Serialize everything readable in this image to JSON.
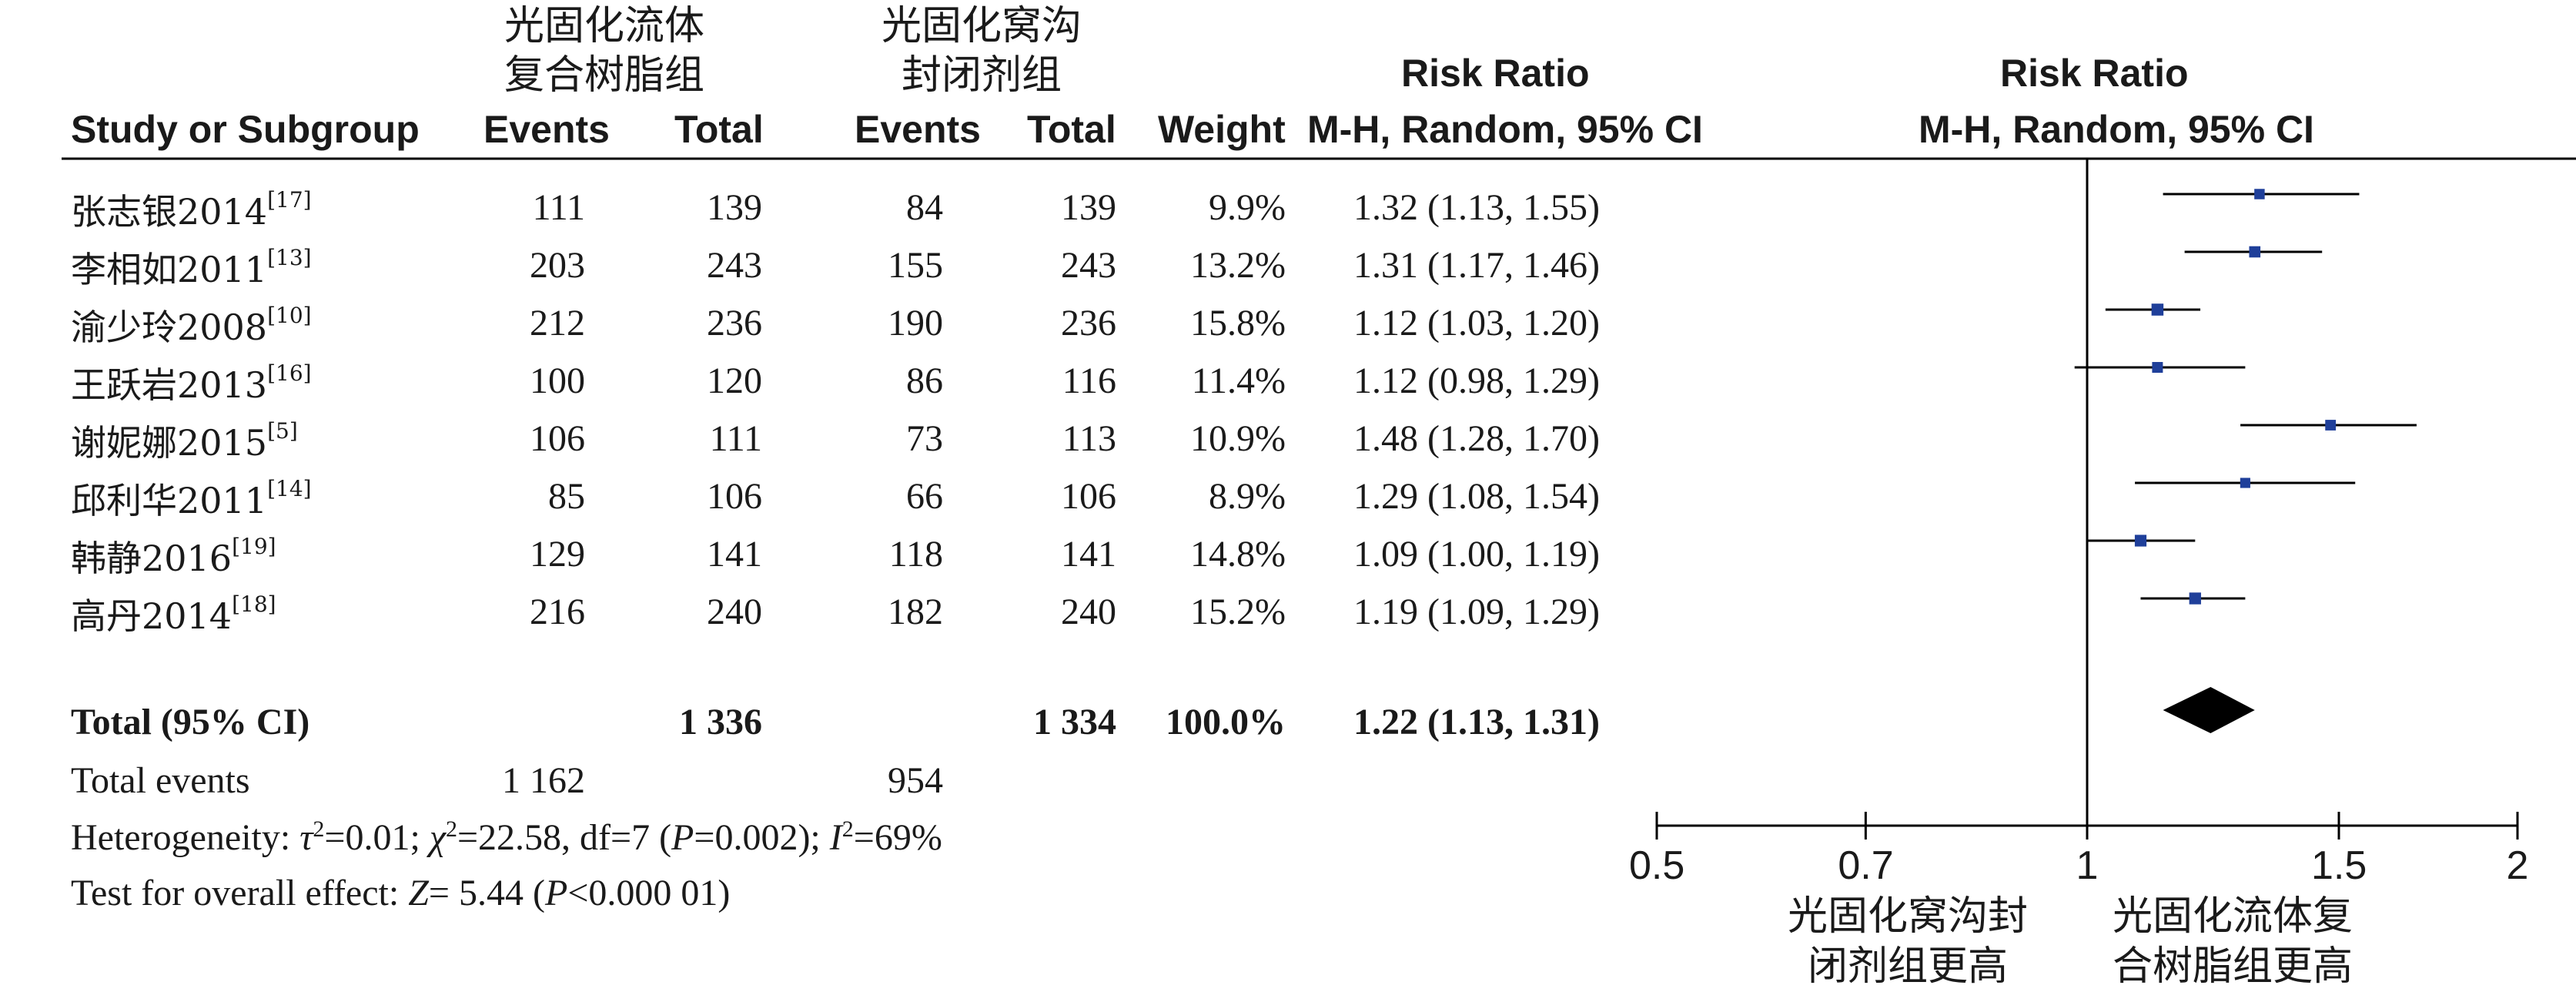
{
  "headers": {
    "study": "Study or Subgroup",
    "group1_line1": "光固化流体",
    "group1_line2": "复合树脂组",
    "group2_line1": "光固化窝沟",
    "group2_line2": "封闭剂组",
    "events1": "Events",
    "total1": "Total",
    "events2": "Events",
    "total2": "Total",
    "weight": "Weight",
    "rr_line1": "Risk Ratio",
    "rr_line2": "M-H, Random, 95% CI",
    "plot_line1": "Risk Ratio",
    "plot_line2": "M-H, Random, 95% CI"
  },
  "studies": [
    {
      "name": "张志银2014",
      "ref": "[17]",
      "events1": "111",
      "total1": "139",
      "events2": "84",
      "total2": "139",
      "weight": "9.9%",
      "ci": "1.32 (1.13, 1.55)"
    },
    {
      "name": "李相如2011",
      "ref": "[13]",
      "events1": "203",
      "total1": "243",
      "events2": "155",
      "total2": "243",
      "weight": "13.2%",
      "ci": "1.31 (1.17, 1.46)"
    },
    {
      "name": "渝少玲2008",
      "ref": "[10]",
      "events1": "212",
      "total1": "236",
      "events2": "190",
      "total2": "236",
      "weight": "15.8%",
      "ci": "1.12 (1.03, 1.20)"
    },
    {
      "name": "王跃岩2013",
      "ref": "[16]",
      "events1": "100",
      "total1": "120",
      "events2": "86",
      "total2": "116",
      "weight": "11.4%",
      "ci": "1.12 (0.98, 1.29)"
    },
    {
      "name": "谢妮娜2015",
      "ref": "[5]",
      "events1": "106",
      "total1": "111",
      "events2": "73",
      "total2": "113",
      "weight": "10.9%",
      "ci": "1.48 (1.28, 1.70)"
    },
    {
      "name": "邱利华2011",
      "ref": "[14]",
      "events1": "85",
      "total1": "106",
      "events2": "66",
      "total2": "106",
      "weight": "8.9%",
      "ci": "1.29 (1.08, 1.54)"
    },
    {
      "name": "韩静2016",
      "ref": "[19]",
      "events1": "129",
      "total1": "141",
      "events2": "118",
      "total2": "141",
      "weight": "14.8%",
      "ci": "1.09 (1.00, 1.19)"
    },
    {
      "name": "高丹2014",
      "ref": "[18]",
      "events1": "216",
      "total1": "240",
      "events2": "182",
      "total2": "240",
      "weight": "15.2%",
      "ci": "1.19 (1.09, 1.29)"
    }
  ],
  "total_row": {
    "label": "Total (95% CI)",
    "total1": "1 336",
    "total2": "1 334",
    "weight": "100.0%",
    "ci": "1.22 (1.13, 1.31)"
  },
  "total_events": {
    "label": "Total events",
    "events1": "1 162",
    "events2": "954"
  },
  "heterogeneity": {
    "prefix": "Heterogeneity: ",
    "tau": "τ",
    "tau_val": "=0.01; ",
    "chi": "χ",
    "chi_val": "=22.58, df=7 (",
    "p": "P",
    "p_val": "=0.002); ",
    "i": "I",
    "i_val": "=69%",
    "sq": "2"
  },
  "overall": {
    "prefix": "Test for overall effect: ",
    "z": "Z",
    "z_val": "= 5.44 (",
    "p": "P",
    "p_val": "<0.000 01)"
  },
  "axis": {
    "ticks": [
      "0.5",
      "0.7",
      "1",
      "1.5",
      "2"
    ],
    "left_note_line1": "光固化窝沟封",
    "left_note_line2": "闭剂组更高",
    "right_note_line1": "光固化流体复",
    "right_note_line2": "合树脂组更高"
  },
  "colors": {
    "marker": "#1f3f9a",
    "diamond": "#000000",
    "line": "#000000"
  },
  "chart_data": {
    "type": "forest",
    "scale": "log",
    "xlim": [
      0.5,
      2
    ],
    "x_ticks": [
      0.5,
      0.7,
      1,
      1.5,
      2
    ],
    "reference_line": 1,
    "points": [
      {
        "rr": 1.32,
        "lo": 1.13,
        "hi": 1.55,
        "weight": 9.9
      },
      {
        "rr": 1.31,
        "lo": 1.17,
        "hi": 1.46,
        "weight": 13.2
      },
      {
        "rr": 1.12,
        "lo": 1.03,
        "hi": 1.2,
        "weight": 15.8
      },
      {
        "rr": 1.12,
        "lo": 0.98,
        "hi": 1.29,
        "weight": 11.4
      },
      {
        "rr": 1.48,
        "lo": 1.28,
        "hi": 1.7,
        "weight": 10.9
      },
      {
        "rr": 1.29,
        "lo": 1.08,
        "hi": 1.54,
        "weight": 8.9
      },
      {
        "rr": 1.09,
        "lo": 1.0,
        "hi": 1.19,
        "weight": 14.8
      },
      {
        "rr": 1.19,
        "lo": 1.09,
        "hi": 1.29,
        "weight": 15.2
      }
    ],
    "summary": {
      "rr": 1.22,
      "lo": 1.13,
      "hi": 1.31
    }
  }
}
